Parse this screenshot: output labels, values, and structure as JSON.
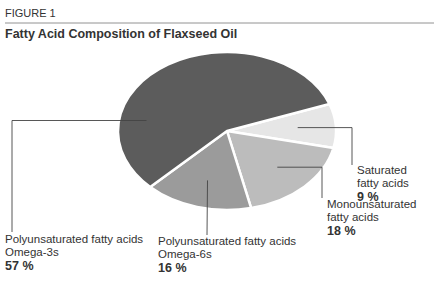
{
  "chart_data": {
    "type": "pie",
    "annotations": [
      "FIGURE 1"
    ],
    "title": "Fatty Acid Composition of Flaxseed Oil",
    "categories": [
      "Saturated\nfatty acids",
      "Monounsaturated\nfatty acids",
      "Polyunsaturated fatty acids\nOmega-6s",
      "Polyunsaturated fatty acids\nOmega-3s"
    ],
    "values": [
      9,
      18,
      16,
      57
    ],
    "value_labels": [
      "9 %",
      "18 %",
      "16 %",
      "57 %"
    ],
    "colors": [
      "#e6e6e6",
      "#bcbcbc",
      "#9b9b9b",
      "#5c5c5c"
    ],
    "data_labels": true
  }
}
